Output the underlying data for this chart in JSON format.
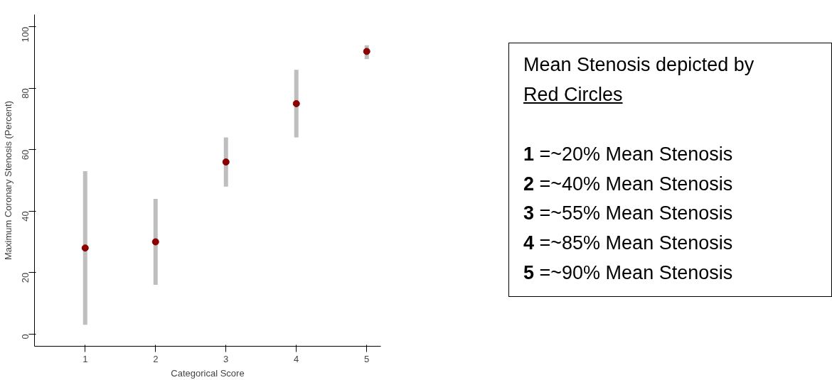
{
  "chart_data": {
    "type": "scatter",
    "xlabel": "Categorical Score",
    "ylabel": "Maximum Coronary Stenosis (Percent)",
    "x": [
      1,
      2,
      3,
      4,
      5
    ],
    "xlim": [
      0.28,
      5.2
    ],
    "xticks": [
      1,
      2,
      3,
      4,
      5
    ],
    "ylim": [
      -4,
      104
    ],
    "yticks": [
      0,
      20,
      40,
      60,
      80,
      100
    ],
    "series": [
      {
        "color": "#8b0000",
        "values": [
          28,
          30,
          56,
          75,
          92
        ],
        "errors": [
          [
            3,
            53
          ],
          [
            16,
            44
          ],
          [
            48,
            64
          ],
          [
            64,
            86
          ],
          [
            89.5,
            94
          ]
        ]
      }
    ],
    "marker": "circle",
    "grid": false,
    "annotations": [
      "Mean Stenosis depicted by",
      "Red Circles",
      "1 =~20% Mean Stenosis",
      "2 =~40% Mean Stenosis",
      "3 =~55% Mean Stenosis",
      "4 =~85% Mean Stenosis",
      "5 =~90% Mean Stenosis"
    ]
  }
}
